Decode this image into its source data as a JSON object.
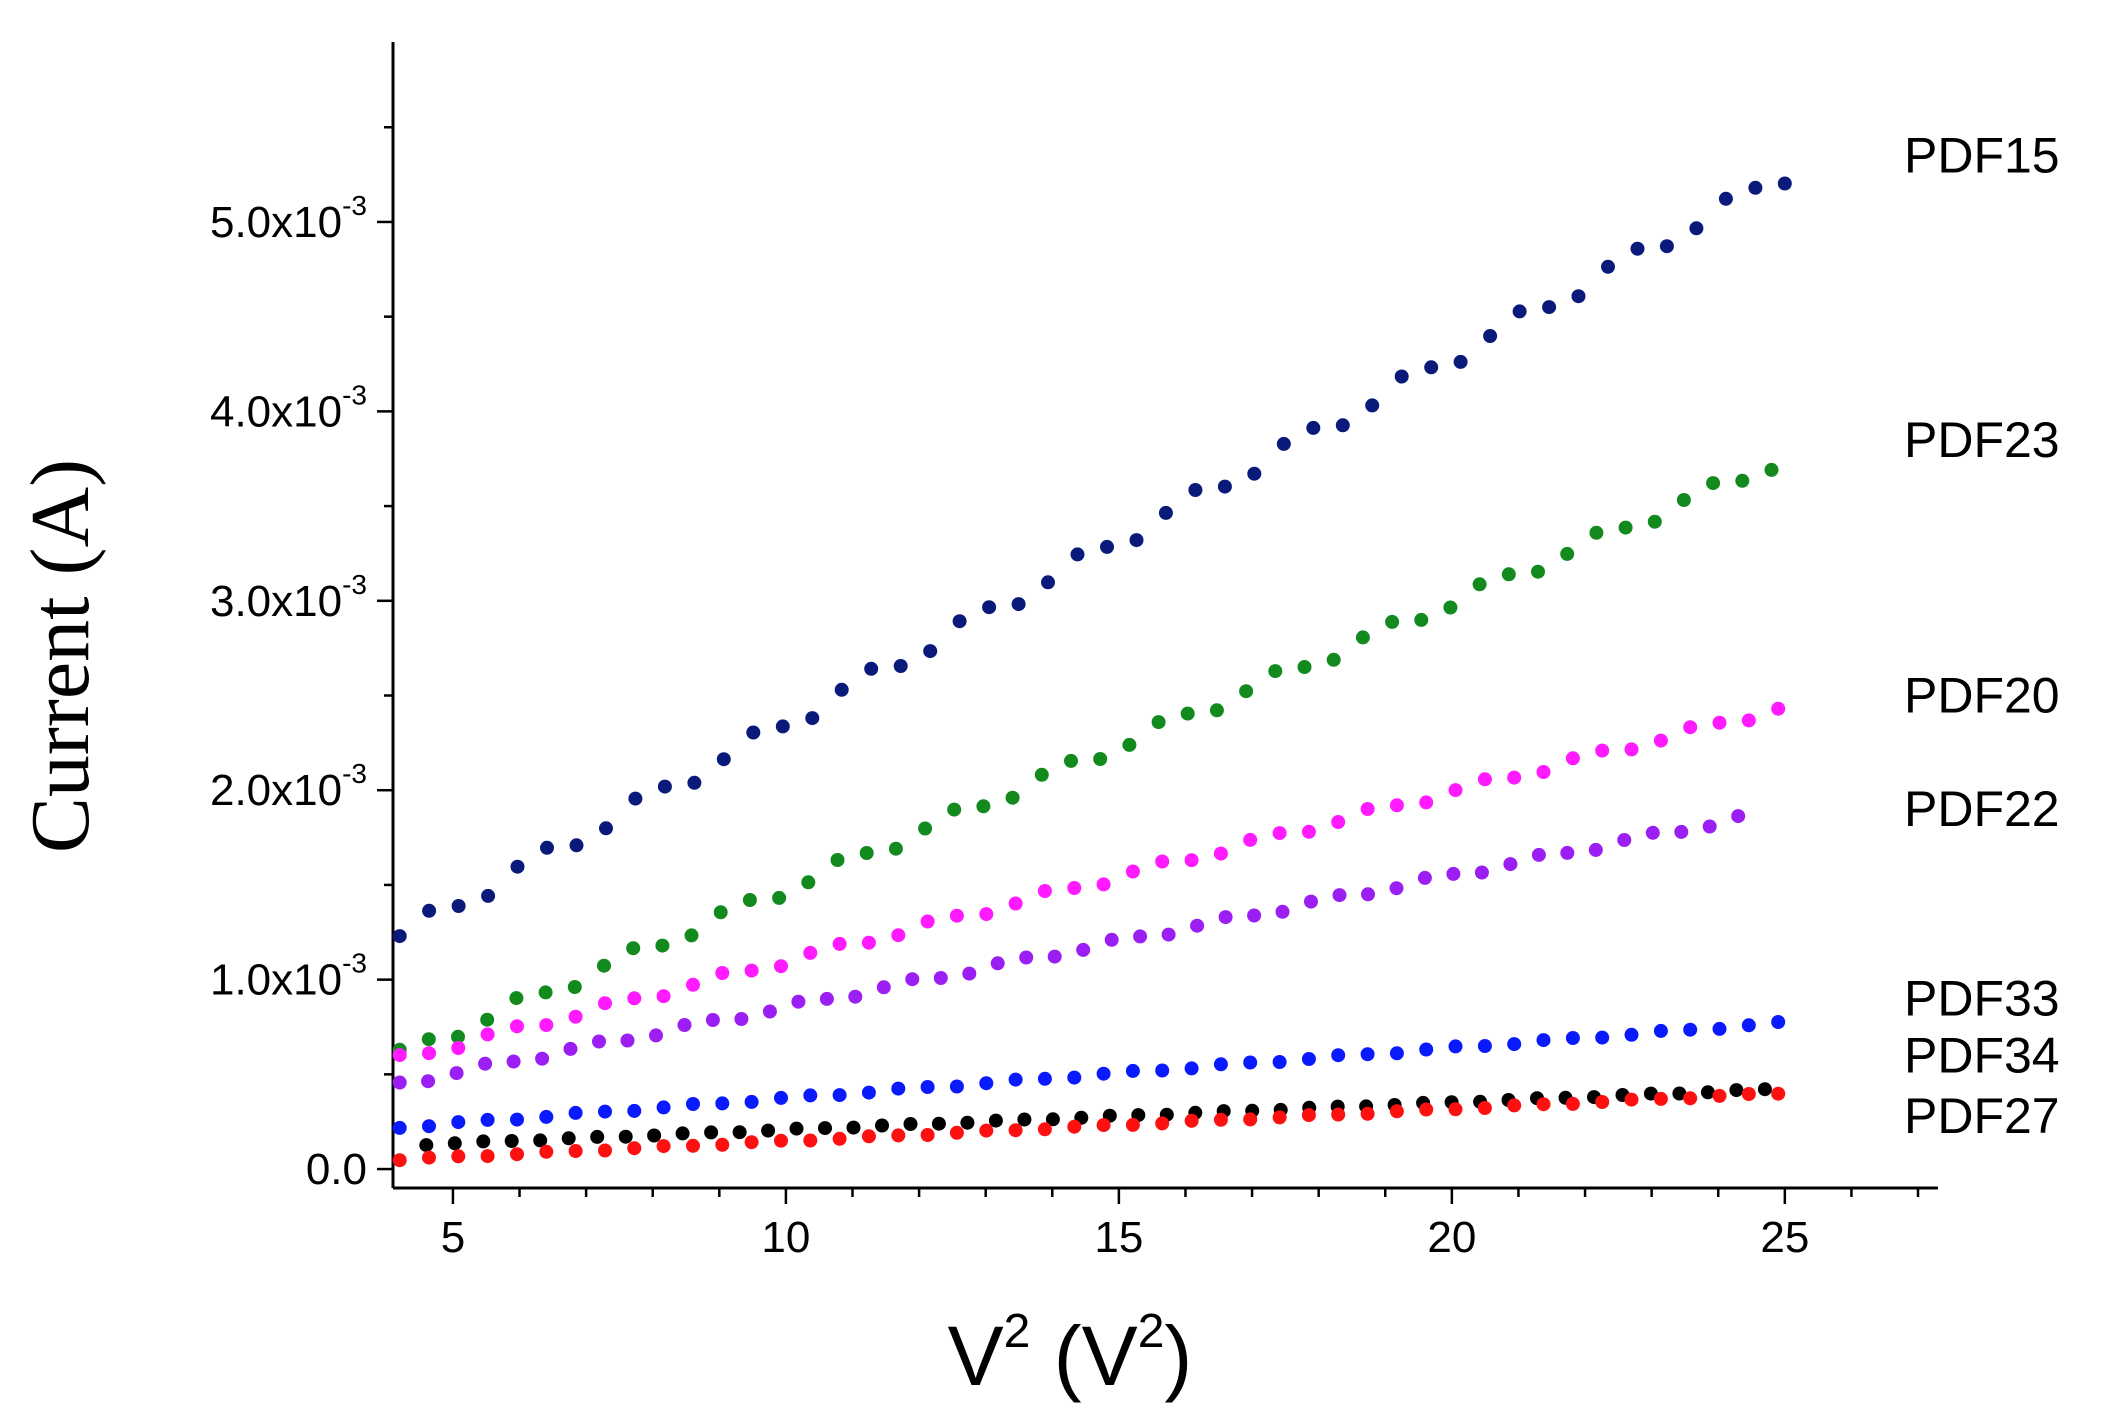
{
  "chart_data": {
    "type": "scatter",
    "title": "",
    "xlabel": "V",
    "xlabel_sup": "2",
    "xlabel_unit_open": " (V",
    "xlabel_unit_sup": "2",
    "xlabel_unit_close": ")",
    "ylabel": "Current (A)",
    "xlim": [
      4.1,
      27.3
    ],
    "ylim": [
      -0.0001,
      0.00595
    ],
    "x_ticks": [
      {
        "value": 5,
        "label": "5"
      },
      {
        "value": 10,
        "label": "10"
      },
      {
        "value": 15,
        "label": "15"
      },
      {
        "value": 20,
        "label": "20"
      },
      {
        "value": 25,
        "label": "25"
      }
    ],
    "y_ticks": [
      {
        "value": 0,
        "label": "0.0",
        "exp": ""
      },
      {
        "value": 0.001,
        "label": "1.0x10",
        "exp": "-3"
      },
      {
        "value": 0.002,
        "label": "2.0x10",
        "exp": "-3"
      },
      {
        "value": 0.003,
        "label": "3.0x10",
        "exp": "-3"
      },
      {
        "value": 0.004,
        "label": "4.0x10",
        "exp": "-3"
      },
      {
        "value": 0.005,
        "label": "5.0x10",
        "exp": "-3"
      }
    ],
    "grid": false,
    "legend": "inline-right",
    "series": [
      {
        "name": "PDF15",
        "color": "#0a1a7a",
        "x_start": 4.2,
        "x_end": 25.0,
        "y_start": 0.00123,
        "y_end": 0.00525,
        "label_at": 0.00535
      },
      {
        "name": "PDF23",
        "color": "#128a1e",
        "x_start": 4.2,
        "x_end": 24.8,
        "y_start": 0.0006,
        "y_end": 0.00372,
        "label_at": 0.00385
      },
      {
        "name": "PDF20",
        "color": "#ff1aff",
        "x_start": 4.2,
        "x_end": 24.9,
        "y_start": 0.00058,
        "y_end": 0.00243,
        "label_at": 0.0025
      },
      {
        "name": "PDF22",
        "color": "#9b1ef2",
        "x_start": 4.2,
        "x_end": 24.3,
        "y_start": 0.00045,
        "y_end": 0.00185,
        "label_at": 0.0019
      },
      {
        "name": "PDF33",
        "color": "#0a1aff",
        "x_start": 4.2,
        "x_end": 24.9,
        "y_start": 0.00022,
        "y_end": 0.00077,
        "label_at": 0.0009
      },
      {
        "name": "PDF34",
        "color": "#000000",
        "x_start": 4.6,
        "x_end": 24.7,
        "y_start": 0.00013,
        "y_end": 0.00042,
        "label_at": 0.0006
      },
      {
        "name": "PDF27",
        "color": "#ff1010",
        "x_start": 4.2,
        "x_end": 24.9,
        "y_start": 5e-05,
        "y_end": 0.0004,
        "label_at": 0.00028
      }
    ]
  }
}
